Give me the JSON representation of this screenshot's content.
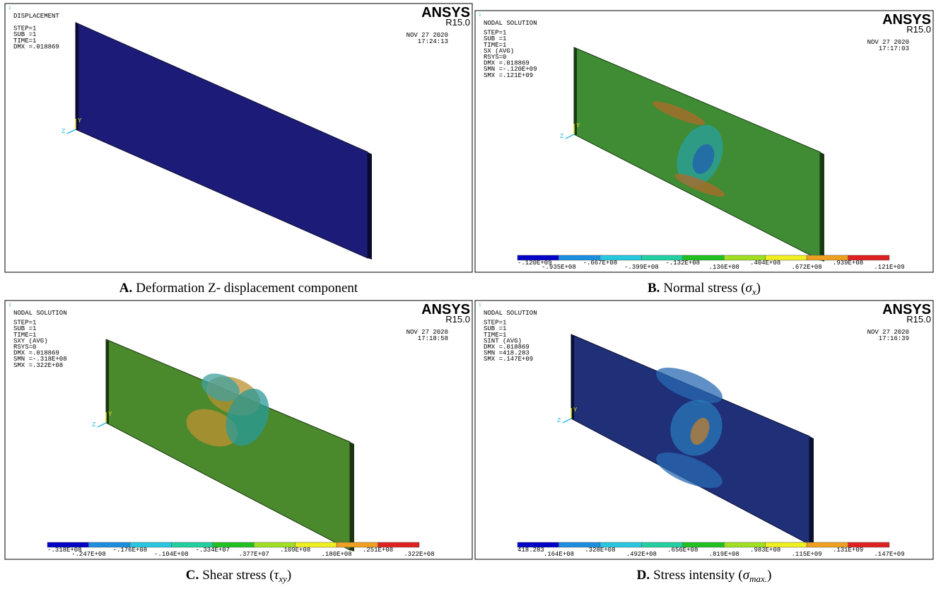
{
  "panels": [
    {
      "window": "1",
      "header": [
        "DISPLACEMENT",
        "STEP=1",
        "SUB =1",
        "TIME=1",
        "DMX =.018869"
      ],
      "brand": "ANSYS",
      "version": "R15.0",
      "date": "NOV 27 2020",
      "time": "17:24:13",
      "axes": {
        "y": "Y",
        "z": "Z"
      },
      "caption": {
        "label": "A.",
        "text": "Deformation Z- displacement component"
      }
    },
    {
      "window": "1",
      "header": [
        "NODAL SOLUTION",
        "STEP=1",
        "SUB =1",
        "TIME=1",
        "SX       (AVG)",
        "RSYS=0",
        "DMX =.018869",
        "SMN =-.120E+09",
        "SMX =.121E+09"
      ],
      "brand": "ANSYS",
      "version": "R15.0",
      "date": "NOV 27 2020",
      "time": "17:17:03",
      "axes": {
        "y": "Y",
        "z": "Z"
      },
      "legend": [
        "-.120E+09",
        "-.935E+08",
        "-.667E+08",
        "-.399E+08",
        "-.132E+08",
        ".136E+08",
        ".404E+08",
        ".672E+08",
        ".939E+08",
        ".121E+09"
      ],
      "caption": {
        "label": "B.",
        "text": "Normal stress (",
        "symbol": "σ",
        "subscript": "x",
        "end": ")"
      }
    },
    {
      "window": "1",
      "header": [
        "NODAL SOLUTION",
        "STEP=1",
        "SUB =1",
        "TIME=1",
        "SXY      (AVG)",
        "RSYS=0",
        "DMX =.018869",
        "SMN =-.318E+08",
        "SMX =.322E+08"
      ],
      "brand": "ANSYS",
      "version": "R15.0",
      "date": "NOV 27 2020",
      "time": "17:18:58",
      "axes": {
        "y": "Y",
        "z": "Z"
      },
      "legend": [
        "-.318E+08",
        "-.247E+08",
        "-.176E+08",
        "-.104E+08",
        "-.334E+07",
        ".377E+07",
        ".109E+08",
        ".180E+08",
        ".251E+08",
        ".322E+08"
      ],
      "caption": {
        "label": "C.",
        "text": "Shear stress (",
        "symbol": "τ",
        "subscript": "xy",
        "end": ")"
      }
    },
    {
      "window": "1",
      "header": [
        "NODAL SOLUTION",
        "STEP=1",
        "SUB =1",
        "TIME=1",
        "SINT     (AVG)",
        "DMX =.018869",
        "SMN =418.283",
        "SMX =.147E+09"
      ],
      "brand": "ANSYS",
      "version": "R15.0",
      "date": "NOV 27 2020",
      "time": "17:16:39",
      "axes": {
        "y": "Y",
        "z": "Z"
      },
      "legend": [
        "418.283",
        ".164E+08",
        ".328E+08",
        ".492E+08",
        ".656E+08",
        ".819E+08",
        ".983E+08",
        ".115E+09",
        ".131E+09",
        ".147E+09"
      ],
      "caption": {
        "label": "D.",
        "text": "Stress intensity (",
        "symbol": "σ",
        "subscript": "max.",
        "end": ")"
      }
    }
  ]
}
